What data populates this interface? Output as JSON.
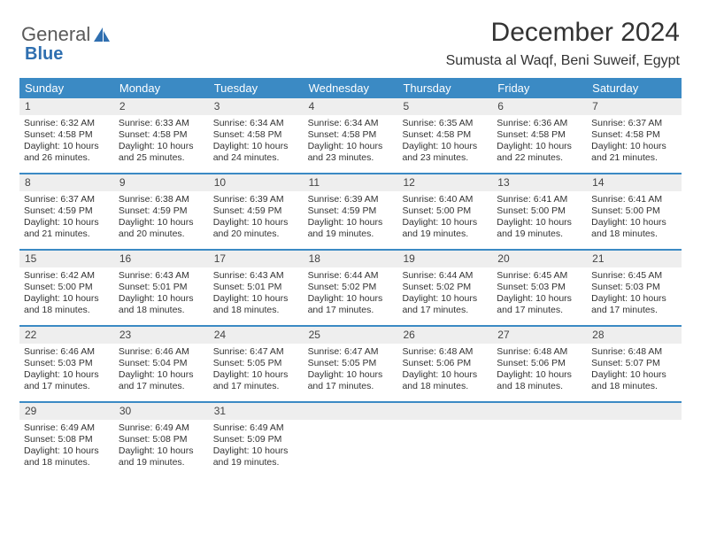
{
  "logo": {
    "text1": "General",
    "text2": "Blue"
  },
  "title": "December 2024",
  "subtitle": "Sumusta al Waqf, Beni Suweif, Egypt",
  "colors": {
    "header_bg": "#3b8ac4",
    "header_fg": "#ffffff",
    "daynum_bg": "#eeeeee",
    "rule": "#3b8ac4",
    "text": "#333333",
    "logo_gray": "#5a5a5a",
    "logo_blue": "#2f6fb0"
  },
  "typography": {
    "title_fontsize": 30,
    "subtitle_fontsize": 16,
    "dayhdr_fontsize": 13,
    "cell_fontsize": 10.5
  },
  "day_names": [
    "Sunday",
    "Monday",
    "Tuesday",
    "Wednesday",
    "Thursday",
    "Friday",
    "Saturday"
  ],
  "days": [
    {
      "n": "1",
      "sr": "6:32 AM",
      "ss": "4:58 PM",
      "dl": "10 hours and 26 minutes."
    },
    {
      "n": "2",
      "sr": "6:33 AM",
      "ss": "4:58 PM",
      "dl": "10 hours and 25 minutes."
    },
    {
      "n": "3",
      "sr": "6:34 AM",
      "ss": "4:58 PM",
      "dl": "10 hours and 24 minutes."
    },
    {
      "n": "4",
      "sr": "6:34 AM",
      "ss": "4:58 PM",
      "dl": "10 hours and 23 minutes."
    },
    {
      "n": "5",
      "sr": "6:35 AM",
      "ss": "4:58 PM",
      "dl": "10 hours and 23 minutes."
    },
    {
      "n": "6",
      "sr": "6:36 AM",
      "ss": "4:58 PM",
      "dl": "10 hours and 22 minutes."
    },
    {
      "n": "7",
      "sr": "6:37 AM",
      "ss": "4:58 PM",
      "dl": "10 hours and 21 minutes."
    },
    {
      "n": "8",
      "sr": "6:37 AM",
      "ss": "4:59 PM",
      "dl": "10 hours and 21 minutes."
    },
    {
      "n": "9",
      "sr": "6:38 AM",
      "ss": "4:59 PM",
      "dl": "10 hours and 20 minutes."
    },
    {
      "n": "10",
      "sr": "6:39 AM",
      "ss": "4:59 PM",
      "dl": "10 hours and 20 minutes."
    },
    {
      "n": "11",
      "sr": "6:39 AM",
      "ss": "4:59 PM",
      "dl": "10 hours and 19 minutes."
    },
    {
      "n": "12",
      "sr": "6:40 AM",
      "ss": "5:00 PM",
      "dl": "10 hours and 19 minutes."
    },
    {
      "n": "13",
      "sr": "6:41 AM",
      "ss": "5:00 PM",
      "dl": "10 hours and 19 minutes."
    },
    {
      "n": "14",
      "sr": "6:41 AM",
      "ss": "5:00 PM",
      "dl": "10 hours and 18 minutes."
    },
    {
      "n": "15",
      "sr": "6:42 AM",
      "ss": "5:00 PM",
      "dl": "10 hours and 18 minutes."
    },
    {
      "n": "16",
      "sr": "6:43 AM",
      "ss": "5:01 PM",
      "dl": "10 hours and 18 minutes."
    },
    {
      "n": "17",
      "sr": "6:43 AM",
      "ss": "5:01 PM",
      "dl": "10 hours and 18 minutes."
    },
    {
      "n": "18",
      "sr": "6:44 AM",
      "ss": "5:02 PM",
      "dl": "10 hours and 17 minutes."
    },
    {
      "n": "19",
      "sr": "6:44 AM",
      "ss": "5:02 PM",
      "dl": "10 hours and 17 minutes."
    },
    {
      "n": "20",
      "sr": "6:45 AM",
      "ss": "5:03 PM",
      "dl": "10 hours and 17 minutes."
    },
    {
      "n": "21",
      "sr": "6:45 AM",
      "ss": "5:03 PM",
      "dl": "10 hours and 17 minutes."
    },
    {
      "n": "22",
      "sr": "6:46 AM",
      "ss": "5:03 PM",
      "dl": "10 hours and 17 minutes."
    },
    {
      "n": "23",
      "sr": "6:46 AM",
      "ss": "5:04 PM",
      "dl": "10 hours and 17 minutes."
    },
    {
      "n": "24",
      "sr": "6:47 AM",
      "ss": "5:05 PM",
      "dl": "10 hours and 17 minutes."
    },
    {
      "n": "25",
      "sr": "6:47 AM",
      "ss": "5:05 PM",
      "dl": "10 hours and 17 minutes."
    },
    {
      "n": "26",
      "sr": "6:48 AM",
      "ss": "5:06 PM",
      "dl": "10 hours and 18 minutes."
    },
    {
      "n": "27",
      "sr": "6:48 AM",
      "ss": "5:06 PM",
      "dl": "10 hours and 18 minutes."
    },
    {
      "n": "28",
      "sr": "6:48 AM",
      "ss": "5:07 PM",
      "dl": "10 hours and 18 minutes."
    },
    {
      "n": "29",
      "sr": "6:49 AM",
      "ss": "5:08 PM",
      "dl": "10 hours and 18 minutes."
    },
    {
      "n": "30",
      "sr": "6:49 AM",
      "ss": "5:08 PM",
      "dl": "10 hours and 19 minutes."
    },
    {
      "n": "31",
      "sr": "6:49 AM",
      "ss": "5:09 PM",
      "dl": "10 hours and 19 minutes."
    }
  ],
  "labels": {
    "sunrise": "Sunrise: ",
    "sunset": "Sunset: ",
    "daylight": "Daylight: "
  }
}
